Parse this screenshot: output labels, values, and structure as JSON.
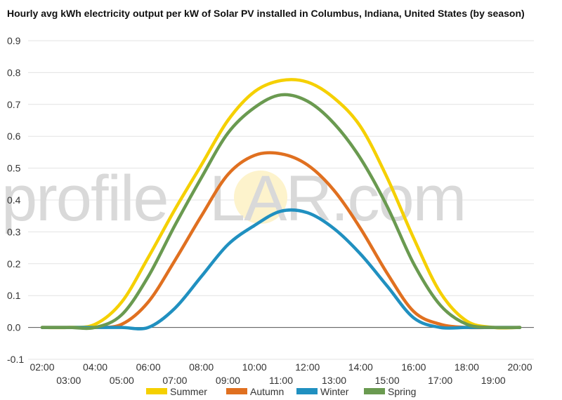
{
  "chart_data": {
    "type": "line",
    "title": "Hourly avg kWh electricity output per kW of Solar PV installed in Columbus, Indiana, United States (by season)",
    "xlabel": "",
    "ylabel": "",
    "watermark": [
      "profile",
      "S",
      "LAR.com"
    ],
    "x": [
      "02:00",
      "03:00",
      "04:00",
      "05:00",
      "06:00",
      "07:00",
      "08:00",
      "09:00",
      "10:00",
      "11:00",
      "12:00",
      "13:00",
      "14:00",
      "15:00",
      "16:00",
      "17:00",
      "18:00",
      "19:00",
      "20:00"
    ],
    "ylim": [
      -0.1,
      0.9
    ],
    "yticks": [
      -0.1,
      0.0,
      0.1,
      0.2,
      0.3,
      0.4,
      0.5,
      0.6,
      0.7,
      0.8,
      0.9
    ],
    "ytick_labels": [
      "-0.1",
      "0.0",
      "0.1",
      "0.2",
      "0.3",
      "0.4",
      "0.5",
      "0.6",
      "0.7",
      "0.8",
      "0.9"
    ],
    "grid": true,
    "legend_position": "bottom",
    "series": [
      {
        "name": "Summer",
        "color": "#f5d000",
        "values": [
          0,
          0,
          0.01,
          0.08,
          0.22,
          0.37,
          0.51,
          0.65,
          0.74,
          0.775,
          0.77,
          0.72,
          0.63,
          0.47,
          0.28,
          0.11,
          0.02,
          0,
          0
        ]
      },
      {
        "name": "Autumn",
        "color": "#e07020",
        "values": [
          0,
          0,
          0,
          0.01,
          0.08,
          0.21,
          0.35,
          0.48,
          0.54,
          0.545,
          0.51,
          0.43,
          0.31,
          0.17,
          0.05,
          0.01,
          0,
          0,
          0
        ]
      },
      {
        "name": "Winter",
        "color": "#2090c0",
        "values": [
          0,
          0,
          0,
          0,
          0,
          0.06,
          0.16,
          0.26,
          0.32,
          0.365,
          0.36,
          0.31,
          0.23,
          0.13,
          0.03,
          0,
          0,
          0,
          0
        ]
      },
      {
        "name": "Spring",
        "color": "#6a9a50",
        "values": [
          0,
          0,
          0,
          0.04,
          0.16,
          0.32,
          0.47,
          0.61,
          0.69,
          0.73,
          0.71,
          0.64,
          0.53,
          0.38,
          0.2,
          0.07,
          0.01,
          0,
          0
        ]
      }
    ]
  }
}
